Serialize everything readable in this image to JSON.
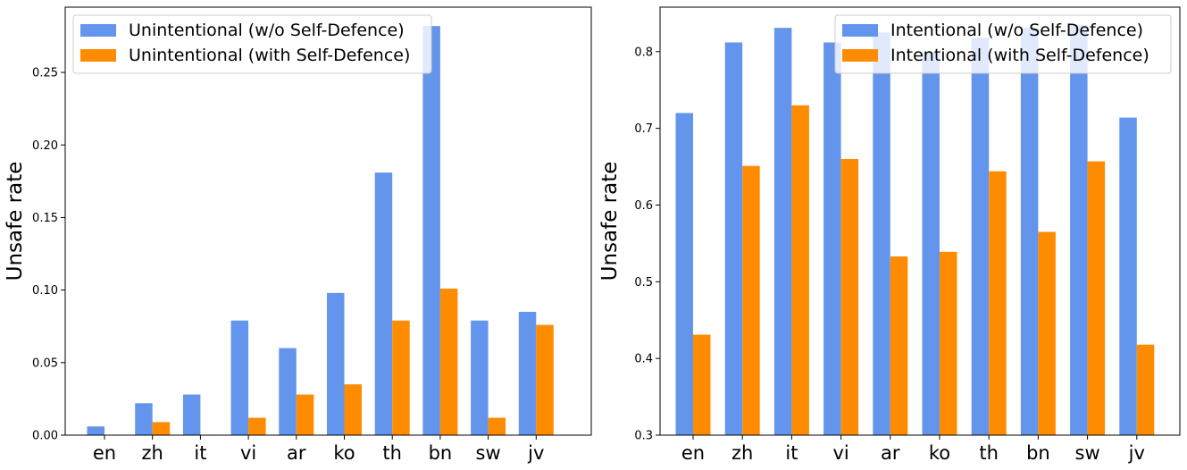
{
  "chart_data": [
    {
      "type": "bar",
      "categories": [
        "en",
        "zh",
        "it",
        "vi",
        "ar",
        "ko",
        "th",
        "bn",
        "sw",
        "jv"
      ],
      "ylabel": "Unsafe rate",
      "ylim": [
        0,
        0.295
      ],
      "yticks": [
        0.0,
        0.05,
        0.1,
        0.15,
        0.2,
        0.25
      ],
      "ytick_labels": [
        "0.00",
        "0.05",
        "0.10",
        "0.15",
        "0.20",
        "0.25"
      ],
      "legend_position": "top-left",
      "series": [
        {
          "name": "Unintentional (w/o Self-Defence)",
          "color": "#6495ED",
          "values": [
            0.006,
            0.022,
            0.028,
            0.079,
            0.06,
            0.098,
            0.181,
            0.282,
            0.079,
            0.085
          ]
        },
        {
          "name": "Unintentional (with Self-Defence)",
          "color": "#FF8C00",
          "values": [
            0.0,
            0.009,
            0.0,
            0.012,
            0.028,
            0.035,
            0.079,
            0.101,
            0.012,
            0.076
          ]
        }
      ]
    },
    {
      "type": "bar",
      "categories": [
        "en",
        "zh",
        "it",
        "vi",
        "ar",
        "ko",
        "th",
        "bn",
        "sw",
        "jv"
      ],
      "ylabel": "Unsafe rate",
      "ylim": [
        0.3,
        0.858
      ],
      "yticks": [
        0.3,
        0.4,
        0.5,
        0.6,
        0.7,
        0.8
      ],
      "ytick_labels": [
        "0.3",
        "0.4",
        "0.5",
        "0.6",
        "0.7",
        "0.8"
      ],
      "legend_position": "top-right",
      "series": [
        {
          "name": "Intentional (w/o Self-Defence)",
          "color": "#6495ED",
          "values": [
            0.72,
            0.812,
            0.831,
            0.812,
            0.825,
            0.8,
            0.818,
            0.831,
            0.835,
            0.714
          ]
        },
        {
          "name": "Intentional (with Self-Defence)",
          "color": "#FF8C00",
          "values": [
            0.431,
            0.651,
            0.73,
            0.66,
            0.533,
            0.539,
            0.644,
            0.565,
            0.657,
            0.418
          ]
        }
      ]
    }
  ]
}
